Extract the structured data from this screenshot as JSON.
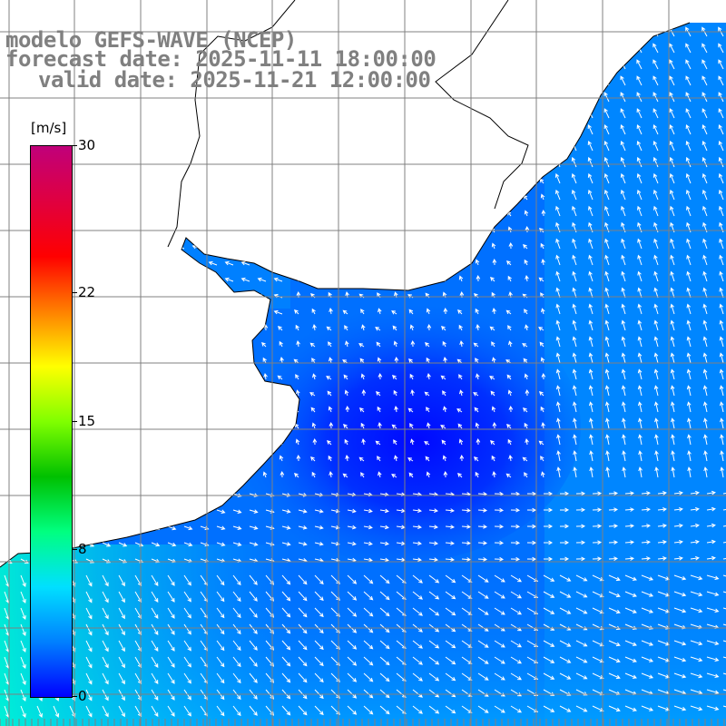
{
  "title": {
    "line1": "modelo GEFS-WAVE (NCEP)",
    "line2": "forecast date: 2025-11-11 18:00:00",
    "line3": "valid date: 2025-11-21 12:00:00"
  },
  "colorbar": {
    "unit": "[m/s]",
    "ticks": [
      "30",
      "22",
      "15",
      "8",
      "0"
    ],
    "tick_values": [
      30,
      22,
      15,
      8,
      0
    ],
    "range": [
      0,
      30
    ],
    "colors": [
      "#0000ff",
      "#0080ff",
      "#00e0ff",
      "#00ff80",
      "#00c000",
      "#80ff00",
      "#ffff00",
      "#ff8000",
      "#ff0000",
      "#e00040",
      "#c0007a"
    ]
  },
  "map": {
    "land_color": "#ffffff",
    "coast_color": "#000000",
    "grid_color": "#808080",
    "arrow_color": "#ffffff",
    "field": "wind speed and direction"
  }
}
